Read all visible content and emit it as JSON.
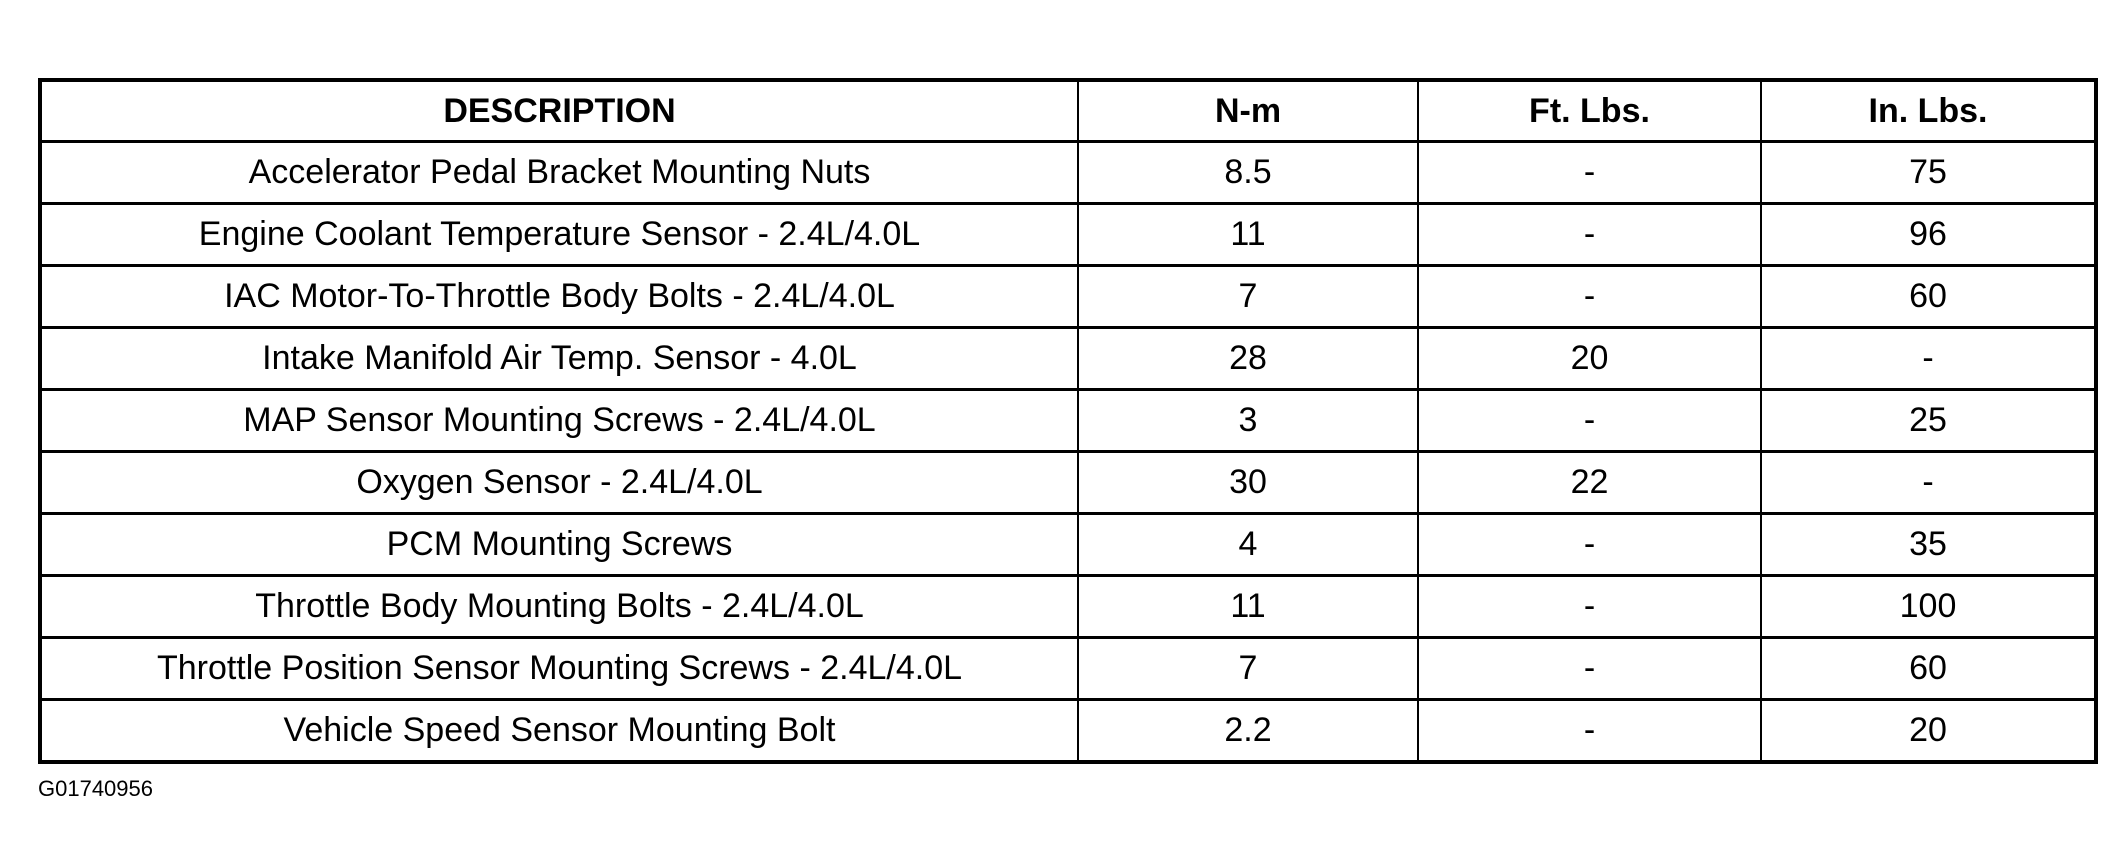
{
  "table": {
    "headers": [
      "DESCRIPTION",
      "N-m",
      "Ft. Lbs.",
      "In. Lbs."
    ],
    "rows": [
      [
        "Accelerator Pedal Bracket Mounting Nuts",
        "8.5",
        "-",
        "75"
      ],
      [
        "Engine Coolant Temperature Sensor - 2.4L/4.0L",
        "11",
        "-",
        "96"
      ],
      [
        "IAC Motor-To-Throttle Body Bolts - 2.4L/4.0L",
        "7",
        "-",
        "60"
      ],
      [
        "Intake Manifold Air Temp. Sensor - 4.0L",
        "28",
        "20",
        "-"
      ],
      [
        "MAP Sensor Mounting Screws - 2.4L/4.0L",
        "3",
        "-",
        "25"
      ],
      [
        "Oxygen Sensor - 2.4L/4.0L",
        "30",
        "22",
        "-"
      ],
      [
        "PCM Mounting Screws",
        "4",
        "-",
        "35"
      ],
      [
        "Throttle Body Mounting Bolts - 2.4L/4.0L",
        "11",
        "-",
        "100"
      ],
      [
        "Throttle Position Sensor Mounting Screws - 2.4L/4.0L",
        "7",
        "-",
        "60"
      ],
      [
        "Vehicle Speed Sensor Mounting Bolt",
        "2.2",
        "-",
        "20"
      ]
    ]
  },
  "figure_id": "G01740956"
}
